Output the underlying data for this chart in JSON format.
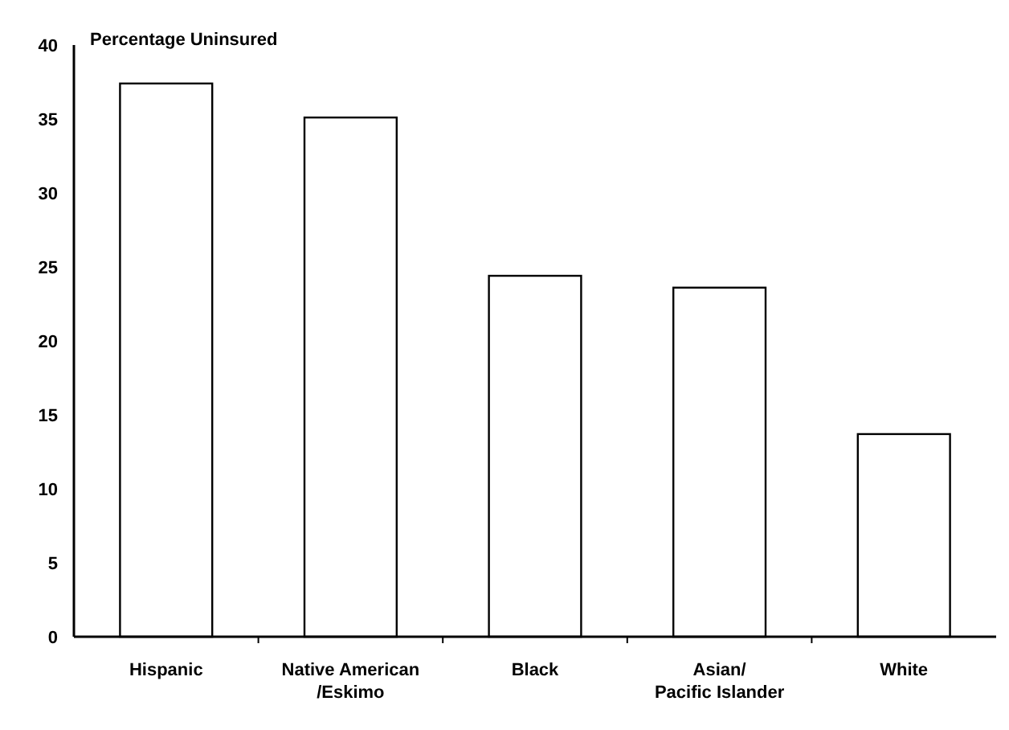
{
  "chart_data": {
    "type": "bar",
    "ylabel": "Percentage Uninsured",
    "categories": [
      "Hispanic",
      "Native American\n/Eskimo",
      "Black",
      "Asian/\nPacific Islander",
      "White"
    ],
    "values": [
      37.4,
      35.1,
      24.4,
      23.6,
      13.7
    ],
    "color": "#ffffff",
    "ylim": [
      0,
      40
    ],
    "yticks": [
      0,
      5,
      10,
      15,
      20,
      25,
      30,
      35,
      40
    ],
    "grid": false
  }
}
